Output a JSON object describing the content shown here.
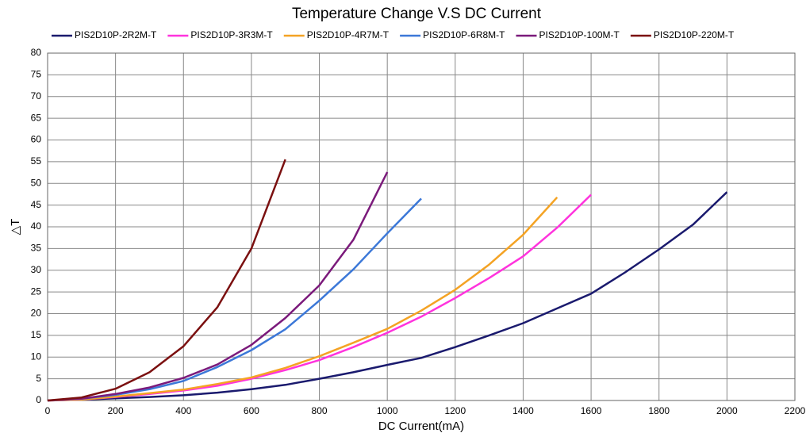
{
  "chart_data": {
    "type": "line",
    "title": "Temperature Change V.S DC Current",
    "xlabel": "DC Current(mA)",
    "ylabel": "△T",
    "x": [
      0,
      100,
      200,
      300,
      400,
      500,
      600,
      700,
      800,
      900,
      1000,
      1100,
      1200,
      1300,
      1400,
      1500,
      1600,
      1700,
      1800,
      1900,
      2000
    ],
    "series": [
      {
        "name": "PIS2D10P-2R2M-T",
        "color": "#1a1a6e",
        "values": [
          0,
          0.2,
          0.5,
          0.8,
          1.2,
          1.8,
          2.6,
          3.6,
          5,
          6.5,
          8.2,
          9.8,
          12.3,
          15,
          17.8,
          21.2,
          24.6,
          29.5,
          34.8,
          40.5,
          48
        ]
      },
      {
        "name": "PIS2D10P-3R3M-T",
        "color": "#ff33dd",
        "values": [
          0,
          0.2,
          0.8,
          1.5,
          2.3,
          3.4,
          5,
          7,
          9.3,
          12.3,
          15.6,
          19.3,
          23.6,
          28.2,
          33.2,
          39.8,
          47.4,
          null,
          null,
          null,
          null
        ]
      },
      {
        "name": "PIS2D10P-4R7M-T",
        "color": "#f4a324",
        "values": [
          0,
          0.2,
          0.9,
          1.7,
          2.5,
          3.8,
          5.3,
          7.5,
          10.2,
          13.3,
          16.5,
          20.7,
          25.5,
          31.3,
          38.2,
          46.8,
          null,
          null,
          null,
          null,
          null
        ]
      },
      {
        "name": "PIS2D10P-6R8M-T",
        "color": "#3c78d8",
        "values": [
          0,
          0.4,
          1.3,
          2.6,
          4.5,
          7.7,
          11.6,
          16.4,
          23,
          30.2,
          38.5,
          46.5,
          null,
          null,
          null,
          null,
          null,
          null,
          null,
          null,
          null
        ]
      },
      {
        "name": "PIS2D10P-100M-T",
        "color": "#7b1a7b",
        "values": [
          0,
          0.4,
          1.5,
          3,
          5.2,
          8.3,
          12.8,
          19,
          26.5,
          37,
          52.6,
          null,
          null,
          null,
          null,
          null,
          null,
          null,
          null,
          null,
          null
        ]
      },
      {
        "name": "PIS2D10P-220M-T",
        "color": "#7b1010",
        "values": [
          0,
          0.7,
          2.7,
          6.5,
          12.5,
          21.5,
          35,
          55.5,
          null,
          null,
          null,
          null,
          null,
          null,
          null,
          null,
          null,
          null,
          null,
          null,
          null
        ]
      }
    ],
    "xlim": [
      0,
      2200
    ],
    "xticks": [
      0,
      200,
      400,
      600,
      800,
      1000,
      1200,
      1400,
      1600,
      1800,
      2000,
      2200
    ],
    "ylim": [
      0,
      80
    ],
    "yticks": [
      0,
      5,
      10,
      15,
      20,
      25,
      30,
      35,
      40,
      45,
      50,
      55,
      60,
      65,
      70,
      75,
      80
    ],
    "grid": true,
    "legend": "top"
  }
}
